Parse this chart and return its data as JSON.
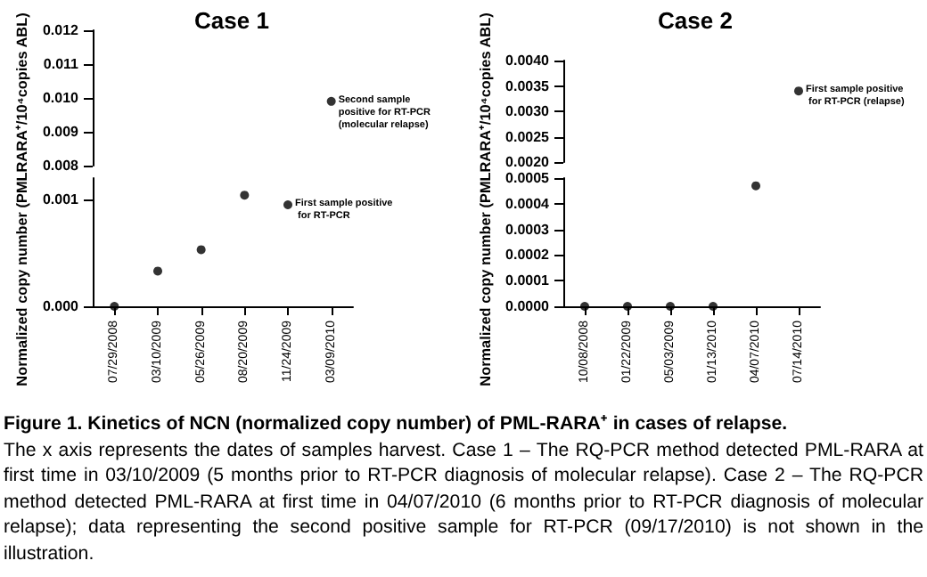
{
  "chart_data": [
    {
      "type": "scatter",
      "title": "Case 1",
      "ylabel": "Normalized copy number (PMLRARA⁺/10⁴copies ABL)",
      "categories": [
        "07/29/2008",
        "03/10/2009",
        "05/26/2009",
        "08/20/2009",
        "11/24/2009",
        "03/09/2010"
      ],
      "values": [
        null,
        null,
        null,
        null,
        null,
        0.0099
      ],
      "color": "#000000",
      "marker": "circle",
      "ylim": [
        0.008,
        0.012
      ],
      "yticks": [
        0.008,
        0.009,
        {
          "value": 0.01,
          "label": "0.010"
        },
        0.011,
        0.012
      ],
      "tick_labels": "y",
      "annotations": [
        {
          "text": "Second sample positive for RT-PCR (molecular relapse)",
          "x": "03/09/2010",
          "y": 0.0099
        }
      ]
    },
    {
      "type": "scatter",
      "categories": [
        "07/29/2008",
        "03/10/2009",
        "05/26/2009",
        "08/20/2009",
        "11/24/2009",
        "03/09/2010"
      ],
      "values": [
        0,
        0.00033,
        0.00053,
        0.00104,
        0.00095,
        null
      ],
      "color": "#000000",
      "marker": "circle",
      "ylim": [
        0,
        0.0012
      ],
      "yticks": [
        {
          "value": 0,
          "label": "0.000"
        },
        0.001
      ],
      "annotations": [
        {
          "text": "First sample positive for RT-PCR",
          "x": "11/24/2009",
          "y": 0.00095
        }
      ]
    },
    {
      "type": "scatter",
      "title": "Case 2",
      "ylabel": "Normalized copy number (PMLRARA⁺/10⁴copies ABL)",
      "categories": [
        "10/08/2008",
        "01/22/2009",
        "05/03/2009",
        "01/13/2010",
        "04/07/2010",
        "07/14/2010"
      ],
      "values": [
        null,
        null,
        null,
        null,
        null,
        0.0034
      ],
      "color": "#000000",
      "marker": "circle",
      "ylim": [
        0.002,
        0.004
      ],
      "yticks": [
        {
          "value": 0.002,
          "label": "0.0020"
        },
        0.0025,
        {
          "value": 0.003,
          "label": "0.0030"
        },
        0.0035,
        {
          "value": 0.004,
          "label": "0.0040"
        }
      ],
      "tick_labels": "y",
      "annotations": [
        {
          "text": "First sample positive for RT-PCR (relapse)",
          "x": "07/14/2010",
          "y": 0.0034
        }
      ]
    },
    {
      "type": "scatter",
      "categories": [
        "10/08/2008",
        "01/22/2009",
        "05/03/2009",
        "01/13/2010",
        "04/07/2010",
        "07/14/2010"
      ],
      "values": [
        0,
        0,
        0,
        0,
        0.00047,
        null
      ],
      "color": "#000000",
      "marker": "circle",
      "ylim": [
        0,
        0.0005
      ],
      "yticks": [
        {
          "value": 0,
          "label": "0.0000"
        },
        0.0001,
        0.0002,
        0.0003,
        0.0004,
        0.0005
      ],
      "annotations": [
        "Figure 1. Kinetics of NCN (normalized copy number) of PML-RARA⁺ in cases of relapse.",
        "The x axis represents the dates of samples harvest. Case 1 – The RQ-PCR method detected PML-RARA at first time in 03/10/2009 (5 months prior to RT-PCR diagnosis of molecular relapse). Case 2 – The RQ-PCR method detected PML-RARA at first time in 04/07/2010 (6 months prior to RT-PCR diagnosis of molecular relapse); data representing the second positive sample for RT-PCR (09/17/2010) is not shown in the illustration."
      ]
    }
  ]
}
